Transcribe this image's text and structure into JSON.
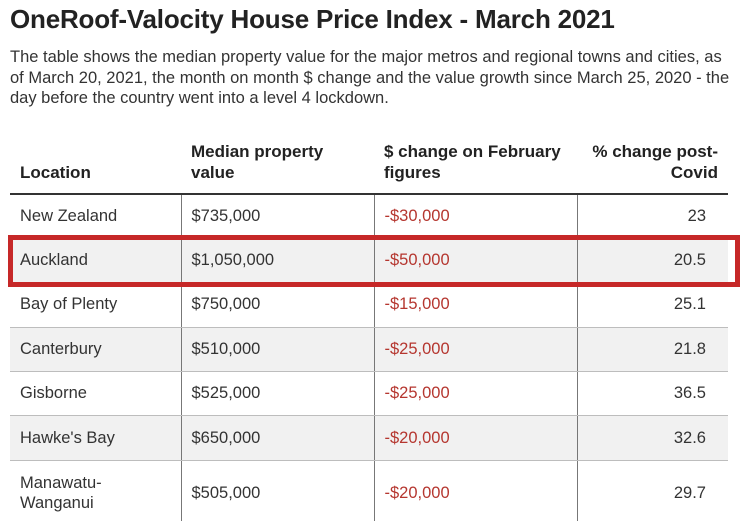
{
  "title": "OneRoof-Valocity House Price Index - March 2021",
  "subtitle": "The table shows the median property value for the major metros and regional towns and cities, as of March 20, 2021, the month on month $ change and the value growth since March 25, 2020 - the day before the country went into a level 4 lockdown.",
  "colors": {
    "highlight": "#c62828",
    "negative": "#b5362f",
    "zebra": "#f1f1f1"
  },
  "table": {
    "headers": {
      "location": "Location",
      "median": "Median property value",
      "change": "$ change on February figures",
      "pct": "% change post-Covid"
    },
    "rows": [
      {
        "location": "New Zealand",
        "median": "$735,000",
        "change": "-$30,000",
        "pct": "23"
      },
      {
        "location": "Auckland",
        "median": "$1,050,000",
        "change": "-$50,000",
        "pct": "20.5"
      },
      {
        "location": "Bay of Plenty",
        "median": "$750,000",
        "change": "-$15,000",
        "pct": "25.1"
      },
      {
        "location": "Canterbury",
        "median": "$510,000",
        "change": "-$25,000",
        "pct": "21.8"
      },
      {
        "location": "Gisborne",
        "median": "$525,000",
        "change": "-$25,000",
        "pct": "36.5"
      },
      {
        "location": "Hawke's Bay",
        "median": "$650,000",
        "change": "-$20,000",
        "pct": "32.6"
      },
      {
        "location": "Manawatu-Wanganui",
        "median": "$505,000",
        "change": "-$20,000",
        "pct": "29.7"
      }
    ],
    "highlighted_row": "Auckland"
  }
}
